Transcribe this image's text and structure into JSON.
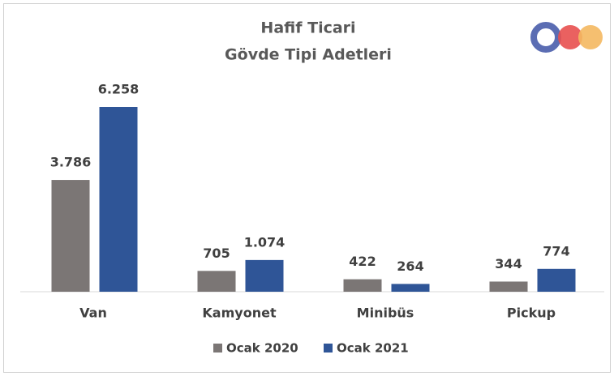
{
  "chart_data": {
    "type": "bar",
    "title": [
      "Hafif Ticari",
      "Gövde Tipi Adetleri"
    ],
    "categories": [
      "Van",
      "Kamyonet",
      "Minibüs",
      "Pickup"
    ],
    "series": [
      {
        "name": "Ocak 2020",
        "color": "#7b7675",
        "values": [
          3786,
          705,
          422,
          344
        ],
        "value_labels": [
          "3.786",
          "705",
          "422",
          "344"
        ]
      },
      {
        "name": "Ocak 2021",
        "color": "#2f5597",
        "values": [
          6258,
          1074,
          264,
          774
        ],
        "value_labels": [
          "6.258",
          "1.074",
          "264",
          "774"
        ]
      }
    ],
    "legend": "bottom"
  }
}
